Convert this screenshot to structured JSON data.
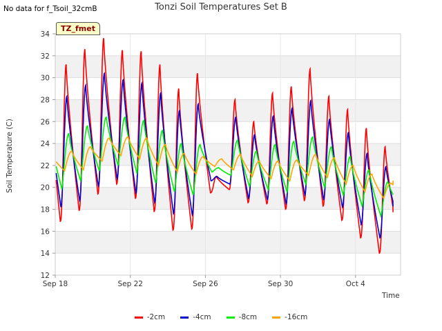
{
  "header": {
    "title": "Tonzi Soil Temperatures Set B",
    "no_data_note": "No data for f_Tsoil_32cmB",
    "tag": "TZ_fmet"
  },
  "chart_data": {
    "type": "line",
    "title": "Tonzi Soil Temperatures Set B",
    "xlabel": "Time",
    "ylabel": "Soil Temperature (C)",
    "ylim": [
      12,
      34
    ],
    "yticks": [
      12,
      14,
      16,
      18,
      20,
      22,
      24,
      26,
      28,
      30,
      32,
      34
    ],
    "xlim": [
      0,
      18.4
    ],
    "xticks": [
      {
        "value": 0,
        "label": "Sep 18"
      },
      {
        "value": 4,
        "label": "Sep 22"
      },
      {
        "value": 8,
        "label": "Sep 26"
      },
      {
        "value": 12,
        "label": "Sep 30"
      },
      {
        "value": 16,
        "label": "Oct 4"
      }
    ],
    "grid": true,
    "legend_position": "bottom",
    "series": [
      {
        "name": "-2cm",
        "color": "#ff0000",
        "daily_min": [
          16.9,
          17.9,
          19.4,
          20.3,
          19.0,
          17.8,
          16.1,
          16.2,
          19.5,
          19.8,
          18.6,
          18.5,
          18.0,
          18.8,
          18.3,
          17.0,
          15.4,
          14.0
        ],
        "daily_max": [
          31.2,
          32.6,
          33.6,
          32.5,
          32.4,
          31.2,
          29.0,
          30.4,
          21.0,
          28.0,
          26.0,
          28.6,
          29.2,
          30.8,
          28.3,
          27.1,
          25.4,
          23.7
        ],
        "end_value": 15.4
      },
      {
        "name": "-4cm",
        "color": "#0000cc",
        "daily_min": [
          18.2,
          18.8,
          20.1,
          20.8,
          19.5,
          18.6,
          17.6,
          17.5,
          20.6,
          20.3,
          19.0,
          18.9,
          18.5,
          19.3,
          18.9,
          18.2,
          16.6,
          15.4
        ],
        "daily_max": [
          28.3,
          29.3,
          30.4,
          29.8,
          29.5,
          28.6,
          27.0,
          27.6,
          21.0,
          26.4,
          24.8,
          26.5,
          27.2,
          27.9,
          26.2,
          25.0,
          23.1,
          21.9
        ],
        "end_value": 16.8
      },
      {
        "name": "-8cm",
        "color": "#00ee00",
        "daily_min": [
          19.9,
          20.6,
          21.5,
          22.0,
          21.3,
          20.4,
          19.6,
          19.3,
          21.4,
          21.1,
          20.1,
          19.8,
          19.6,
          20.3,
          20.0,
          19.3,
          18.3,
          17.4
        ],
        "daily_max": [
          24.9,
          25.6,
          26.4,
          26.4,
          26.1,
          25.2,
          24.0,
          23.9,
          21.8,
          24.3,
          23.3,
          23.9,
          24.2,
          24.6,
          23.7,
          22.8,
          21.6,
          20.5
        ],
        "end_value": 18.3
      },
      {
        "name": "-16cm",
        "color": "#ffa500",
        "daily_min": [
          21.5,
          21.6,
          22.4,
          22.9,
          22.6,
          22.0,
          21.4,
          21.2,
          21.9,
          21.6,
          21.0,
          20.8,
          20.6,
          21.1,
          20.9,
          20.3,
          19.6,
          19.0
        ],
        "daily_max": [
          23.3,
          23.7,
          24.5,
          24.6,
          24.5,
          23.9,
          23.1,
          22.8,
          22.6,
          23.0,
          22.4,
          22.4,
          22.5,
          23.0,
          22.7,
          22.0,
          21.2,
          20.4
        ],
        "start_value": 22.8,
        "end_value": 19.8
      }
    ]
  }
}
